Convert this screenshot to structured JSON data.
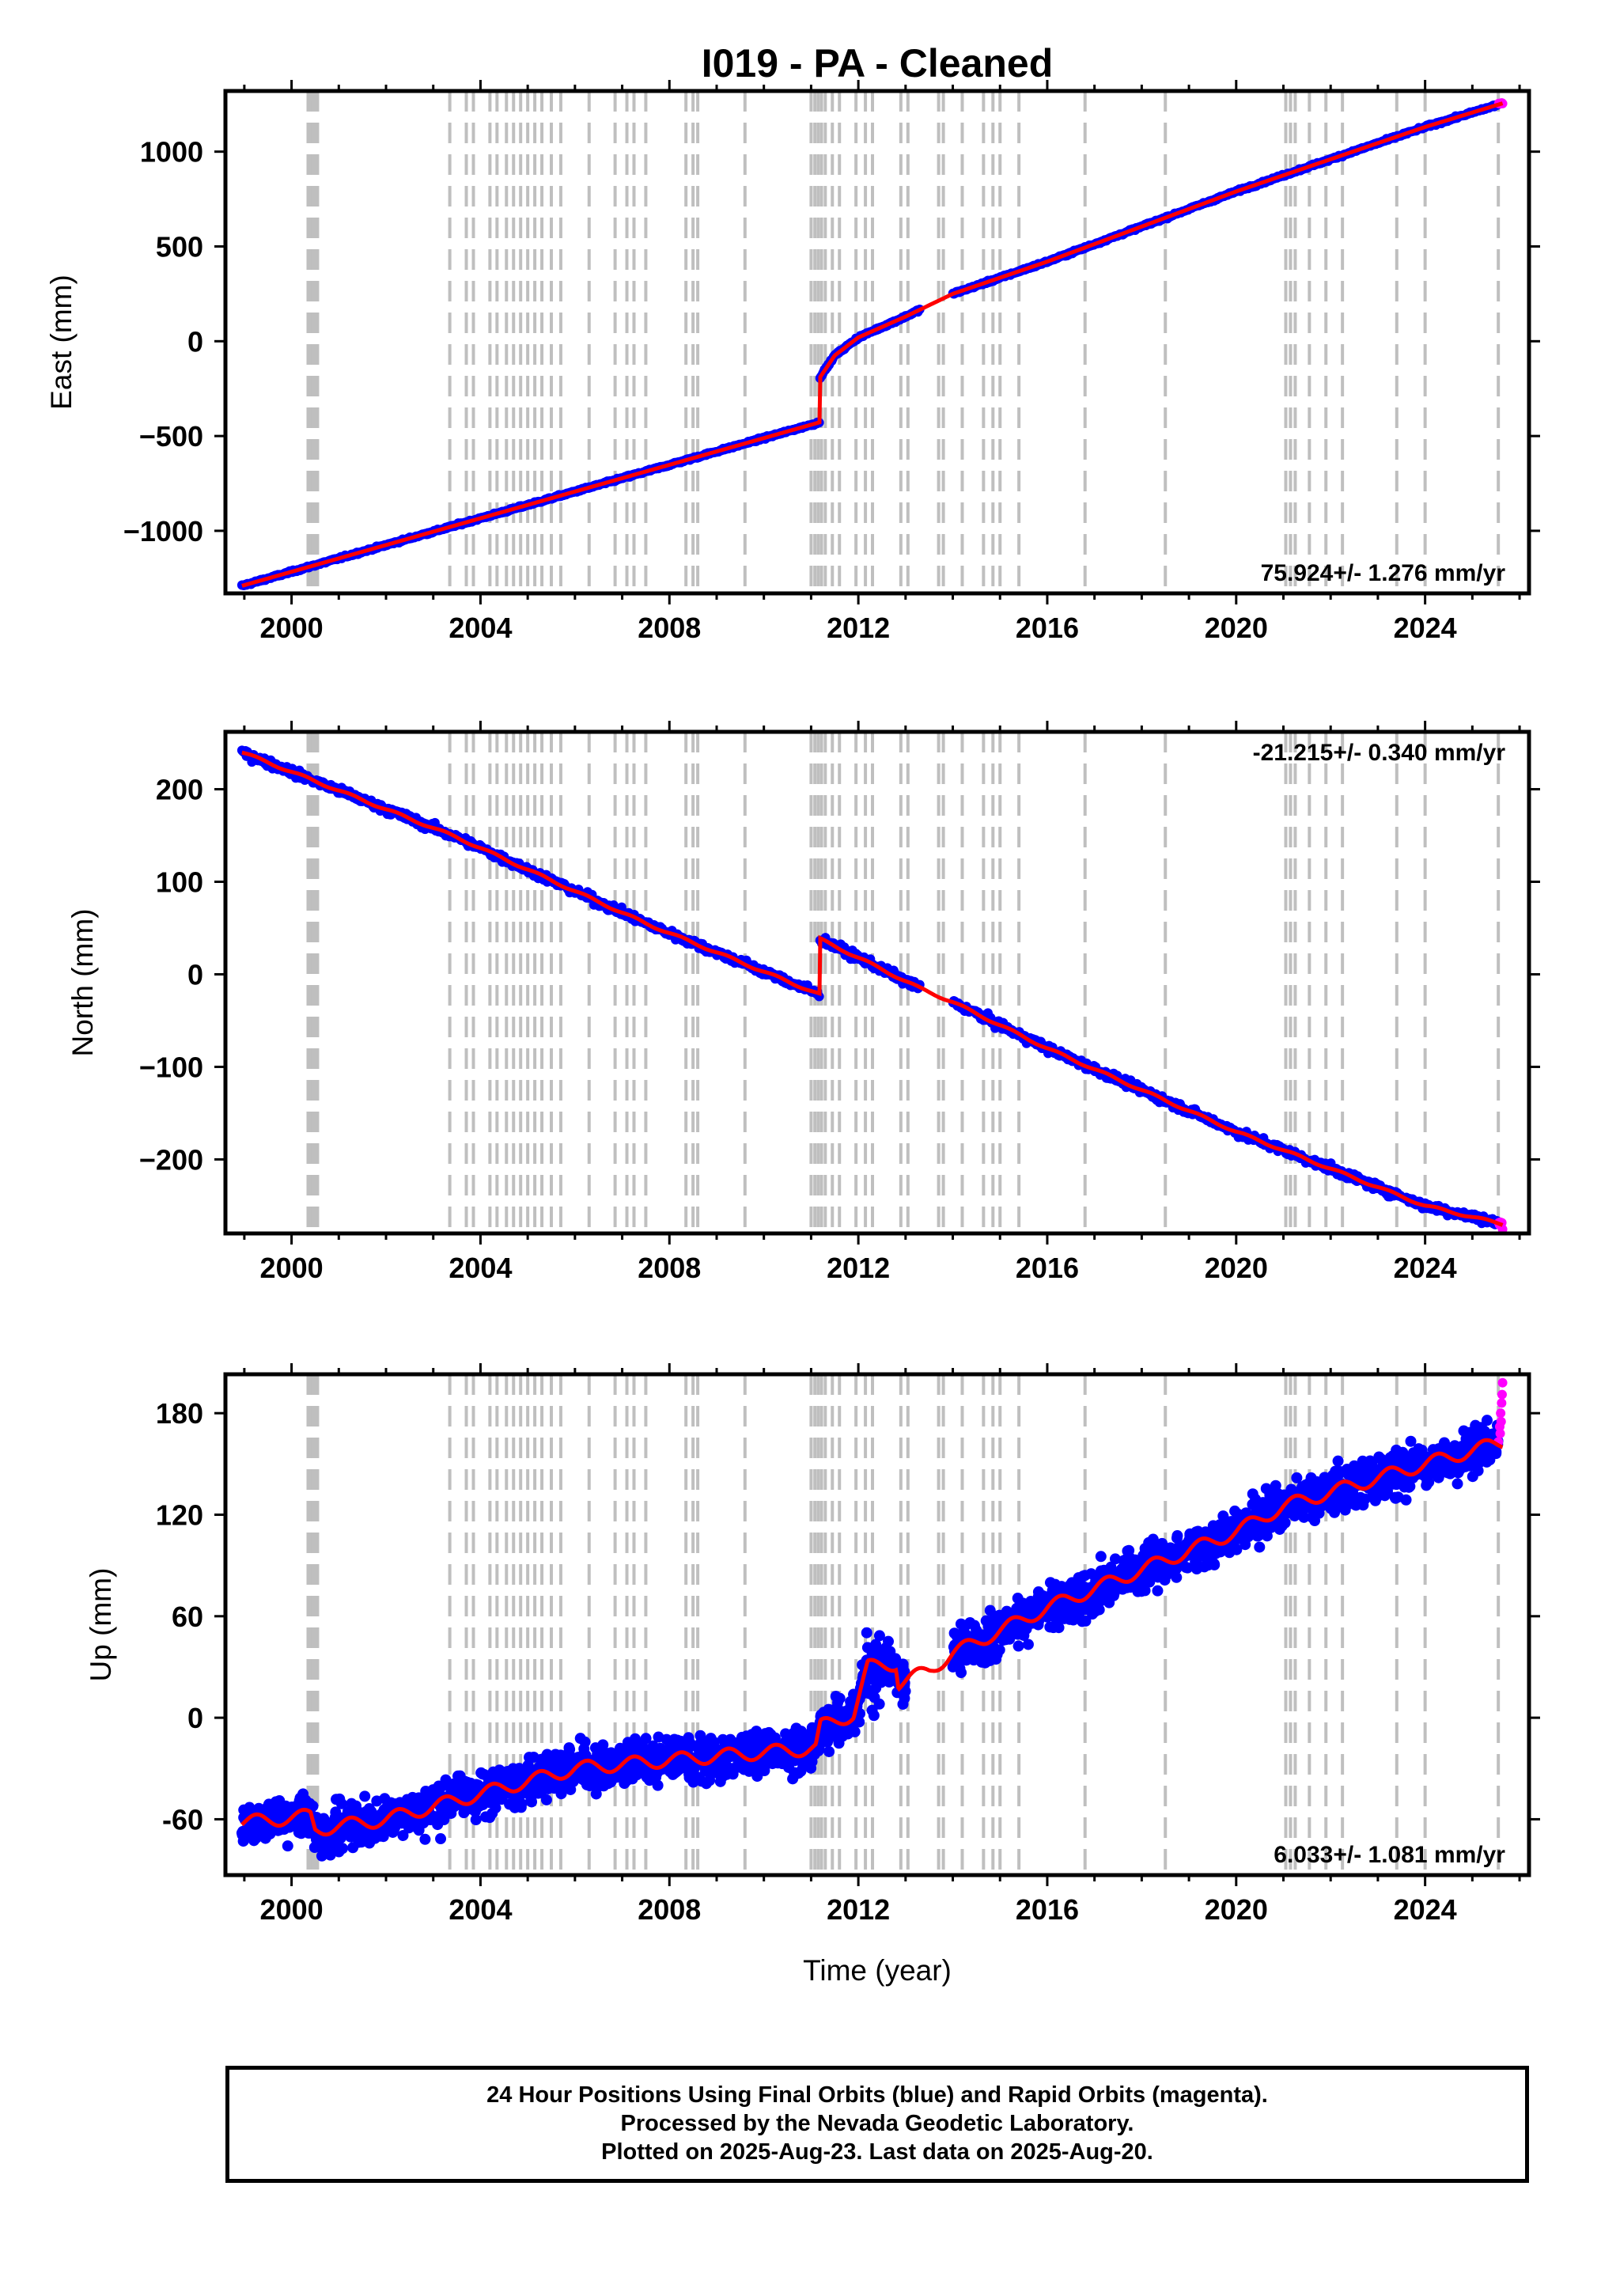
{
  "title": "I019  - PA - Cleaned",
  "xlabel": "Time (year)",
  "footer": {
    "line1": "24 Hour Positions Using Final Orbits (blue) and Rapid Orbits (magenta).",
    "line2": "Processed by the Nevada Geodetic Laboratory.",
    "line3": "Plotted on 2025-Aug-23. Last data on 2025-Aug-20."
  },
  "colors": {
    "final": "#0000ff",
    "rapid": "#ff00ff",
    "model": "#ff0000",
    "events": "#bfbfbf"
  },
  "chart_data": [
    {
      "type": "scatter",
      "component": "East",
      "ylabel": "East (mm)",
      "xlim": [
        1998.6,
        2026.2
      ],
      "ylim": [
        -1330,
        1320
      ],
      "yticks": [
        -1000,
        -500,
        0,
        500,
        1000
      ],
      "yticklabels": [
        "−1000",
        "−500",
        "0",
        "500",
        "1000"
      ],
      "xticks": [
        2000,
        2004,
        2008,
        2012,
        2016,
        2020,
        2024
      ],
      "xticklabels": [
        "2000",
        "2004",
        "2008",
        "2012",
        "2016",
        "2020",
        "2024"
      ],
      "rate_text": "75.924+/- 1.276 mm/yr",
      "rate_position": "bottom-right",
      "model": [
        [
          1998.95,
          -1290
        ],
        [
          2011.19,
          -427
        ],
        [
          2011.19,
          -190
        ],
        [
          2011.5,
          -75
        ],
        [
          2012.0,
          20
        ],
        [
          2013.0,
          130
        ],
        [
          2014.0,
          250
        ],
        [
          2016.0,
          420
        ],
        [
          2020.0,
          790
        ],
        [
          2024.0,
          1130
        ],
        [
          2025.64,
          1255
        ]
      ],
      "noise": 4
    },
    {
      "type": "scatter",
      "component": "North",
      "ylabel": "North (mm)",
      "xlim": [
        1998.6,
        2026.2
      ],
      "ylim": [
        -280,
        262
      ],
      "yticks": [
        -200,
        -100,
        0,
        100,
        200
      ],
      "yticklabels": [
        "−200",
        "−100",
        "0",
        "100",
        "200"
      ],
      "xticks": [
        2000,
        2004,
        2008,
        2012,
        2016,
        2020,
        2024
      ],
      "xticklabels": [
        "2000",
        "2004",
        "2008",
        "2012",
        "2016",
        "2020",
        "2024"
      ],
      "rate_text": "-21.215+/- 0.340 mm/yr",
      "rate_position": "top-right",
      "model": [
        [
          1998.95,
          240
        ],
        [
          2003.5,
          148
        ],
        [
          2007.5,
          55
        ],
        [
          2011.19,
          -22
        ],
        [
          2011.19,
          38
        ],
        [
          2012.0,
          18
        ],
        [
          2013.3,
          -15
        ],
        [
          2014.0,
          -30
        ],
        [
          2016.0,
          -80
        ],
        [
          2020.0,
          -170
        ],
        [
          2024.0,
          -250
        ],
        [
          2025.64,
          -270
        ]
      ],
      "noise": 3
    },
    {
      "type": "scatter",
      "component": "Up",
      "ylabel": "Up (mm)",
      "xlim": [
        1998.6,
        2026.2
      ],
      "ylim": [
        -93,
        203
      ],
      "yticks": [
        -60,
        0,
        60,
        120,
        180
      ],
      "yticklabels": [
        "-60",
        "0",
        "60",
        "120",
        "180"
      ],
      "xticks": [
        2000,
        2004,
        2008,
        2012,
        2016,
        2020,
        2024
      ],
      "xticklabels": [
        "2000",
        "2004",
        "2008",
        "2012",
        "2016",
        "2020",
        "2024"
      ],
      "rate_text": "6.033+/- 1.081 mm/yr",
      "rate_position": "bottom-right",
      "model": [
        [
          1998.95,
          -62
        ],
        [
          2000.4,
          -58
        ],
        [
          2000.5,
          -66
        ],
        [
          2002.0,
          -60
        ],
        [
          2004.0,
          -45
        ],
        [
          2006.0,
          -30
        ],
        [
          2008.0,
          -25
        ],
        [
          2011.1,
          -18
        ],
        [
          2011.2,
          -5
        ],
        [
          2011.9,
          2
        ],
        [
          2012.2,
          30
        ],
        [
          2012.8,
          32
        ],
        [
          2012.85,
          20
        ],
        [
          2013.5,
          28
        ],
        [
          2014.0,
          38
        ],
        [
          2016.0,
          65
        ],
        [
          2020.0,
          110
        ],
        [
          2021.0,
          125
        ],
        [
          2024.0,
          150
        ],
        [
          2025.64,
          163
        ]
      ],
      "noise": 9,
      "rapid_points": [
        [
          2025.55,
          163
        ],
        [
          2025.58,
          172
        ],
        [
          2025.6,
          180
        ],
        [
          2025.62,
          186
        ],
        [
          2025.63,
          191
        ],
        [
          2025.64,
          198
        ],
        [
          2025.59,
          168
        ],
        [
          2025.61,
          175
        ]
      ]
    }
  ],
  "event_years": [
    2000.35,
    2000.4,
    2000.45,
    2000.5,
    2000.55,
    2003.35,
    2003.7,
    2003.85,
    2004.2,
    2004.35,
    2004.55,
    2004.7,
    2004.85,
    2005.0,
    2005.15,
    2005.3,
    2005.5,
    2005.7,
    2006.3,
    2006.85,
    2007.1,
    2007.25,
    2007.5,
    2008.35,
    2008.5,
    2008.6,
    2009.6,
    2011.0,
    2011.08,
    2011.15,
    2011.22,
    2011.3,
    2011.45,
    2011.6,
    2011.95,
    2012.15,
    2012.3,
    2012.9,
    2013.05,
    2013.7,
    2013.8,
    2014.2,
    2014.65,
    2014.85,
    2015.0,
    2015.4,
    2016.8,
    2018.5,
    2021.05,
    2021.15,
    2021.25,
    2021.55,
    2021.9,
    2022.25,
    2023.4,
    2024.0,
    2025.55
  ]
}
